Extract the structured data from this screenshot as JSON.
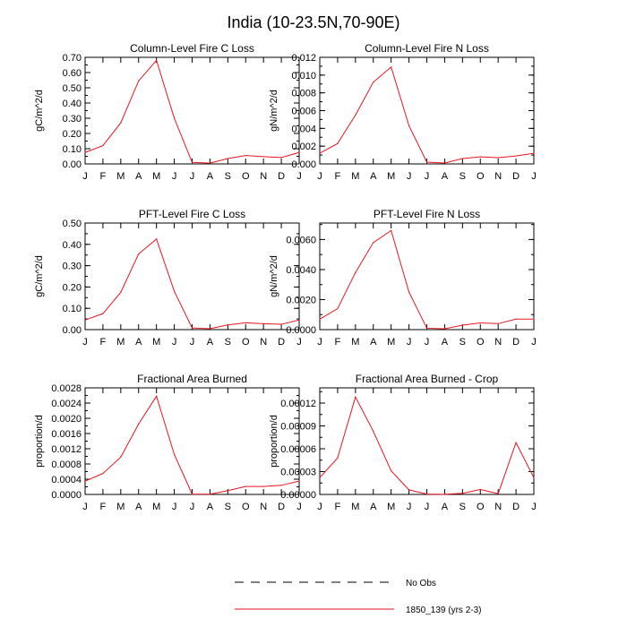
{
  "figure": {
    "title": "India (10-23.5N,70-90E)",
    "line_color": "#e8141e",
    "legend": [
      {
        "label": "No Obs",
        "style": "dashed",
        "color": "#000000"
      },
      {
        "label": "1850_139 (yrs 2-3)",
        "style": "solid",
        "color": "#e8141e"
      }
    ]
  },
  "chart_data": [
    {
      "type": "line",
      "title": "Column-Level Fire C Loss",
      "ylabel": "gC/m^2/d",
      "categories": [
        "J",
        "F",
        "M",
        "A",
        "M",
        "J",
        "J",
        "A",
        "S",
        "O",
        "N",
        "D",
        "J"
      ],
      "ylim": [
        0,
        0.7
      ],
      "yticks": [
        "0.00",
        "0.10",
        "0.20",
        "0.30",
        "0.40",
        "0.50",
        "0.60",
        "0.70"
      ],
      "series": [
        {
          "name": "1850_139 (yrs 2-3)",
          "values": [
            0.075,
            0.12,
            0.27,
            0.545,
            0.68,
            0.3,
            0.01,
            0.005,
            0.035,
            0.055,
            0.048,
            0.042,
            0.075
          ]
        }
      ]
    },
    {
      "type": "line",
      "title": "Column-Level Fire N Loss",
      "ylabel": "gN/m^2/d",
      "categories": [
        "J",
        "F",
        "M",
        "A",
        "M",
        "J",
        "J",
        "A",
        "S",
        "O",
        "N",
        "D",
        "J"
      ],
      "ylim": [
        0,
        0.012
      ],
      "yticks": [
        "0.000",
        "0.002",
        "0.004",
        "0.006",
        "0.008",
        "0.010",
        "0.012"
      ],
      "series": [
        {
          "name": "1850_139 (yrs 2-3)",
          "values": [
            0.0012,
            0.0023,
            0.0055,
            0.0092,
            0.0109,
            0.0043,
            0.0002,
            0.0001,
            0.0006,
            0.0008,
            0.0007,
            0.0009,
            0.0012
          ]
        }
      ]
    },
    {
      "type": "line",
      "title": "PFT-Level Fire C Loss",
      "ylabel": "gC/m^2/d",
      "categories": [
        "J",
        "F",
        "M",
        "A",
        "M",
        "J",
        "J",
        "A",
        "S",
        "O",
        "N",
        "D",
        "J"
      ],
      "ylim": [
        0,
        0.5
      ],
      "yticks": [
        "0.00",
        "0.10",
        "0.20",
        "0.30",
        "0.40",
        "0.50"
      ],
      "series": [
        {
          "name": "1850_139 (yrs 2-3)",
          "values": [
            0.045,
            0.075,
            0.175,
            0.355,
            0.425,
            0.18,
            0.008,
            0.004,
            0.022,
            0.032,
            0.028,
            0.025,
            0.045
          ]
        }
      ]
    },
    {
      "type": "line",
      "title": "PFT-Level Fire N Loss",
      "ylabel": "gN/m^2/d",
      "categories": [
        "J",
        "F",
        "M",
        "A",
        "M",
        "J",
        "J",
        "A",
        "S",
        "O",
        "N",
        "D",
        "J"
      ],
      "ylim": [
        0,
        0.0071
      ],
      "yticks": [
        "0.0000",
        "0.0020",
        "0.0040",
        "0.0060"
      ],
      "ytick_values": [
        0,
        0.002,
        0.004,
        0.006
      ],
      "series": [
        {
          "name": "1850_139 (yrs 2-3)",
          "values": [
            0.0007,
            0.0014,
            0.0038,
            0.0058,
            0.0066,
            0.0025,
            0.0001,
            5e-05,
            0.0003,
            0.00045,
            0.0004,
            0.0007,
            0.0007
          ]
        }
      ]
    },
    {
      "type": "line",
      "title": "Fractional Area Burned",
      "ylabel": "proportion/d",
      "categories": [
        "J",
        "F",
        "M",
        "A",
        "M",
        "J",
        "J",
        "A",
        "S",
        "O",
        "N",
        "D",
        "J"
      ],
      "ylim": [
        0,
        0.0028
      ],
      "yticks": [
        "0.0000",
        "0.0004",
        "0.0008",
        "0.0012",
        "0.0016",
        "0.0020",
        "0.0024",
        "0.0028"
      ],
      "series": [
        {
          "name": "1850_139 (yrs 2-3)",
          "values": [
            0.00035,
            0.00055,
            0.00098,
            0.00185,
            0.00258,
            0.00105,
            1e-05,
            5e-06,
            0.0001,
            0.00021,
            0.00021,
            0.00024,
            0.00035
          ]
        }
      ]
    },
    {
      "type": "line",
      "title": "Fractional Area Burned - Crop",
      "ylabel": "proportion/d",
      "categories": [
        "J",
        "F",
        "M",
        "A",
        "M",
        "J",
        "J",
        "A",
        "S",
        "O",
        "N",
        "D",
        "J"
      ],
      "ylim": [
        0,
        0.00014
      ],
      "yticks": [
        "0.00000",
        "0.00003",
        "0.00006",
        "0.00009",
        "0.00012"
      ],
      "ytick_values": [
        0,
        3e-05,
        6e-05,
        9e-05,
        0.00012
      ],
      "series": [
        {
          "name": "1850_139 (yrs 2-3)",
          "values": [
            2.2e-05,
            4.8e-05,
            0.000128,
            8.3e-05,
            3.1e-05,
            6e-06,
            5e-07,
            2e-07,
            1.5e-06,
            6.5e-06,
            1e-06,
            6.8e-05,
            2.2e-05
          ]
        }
      ]
    }
  ]
}
